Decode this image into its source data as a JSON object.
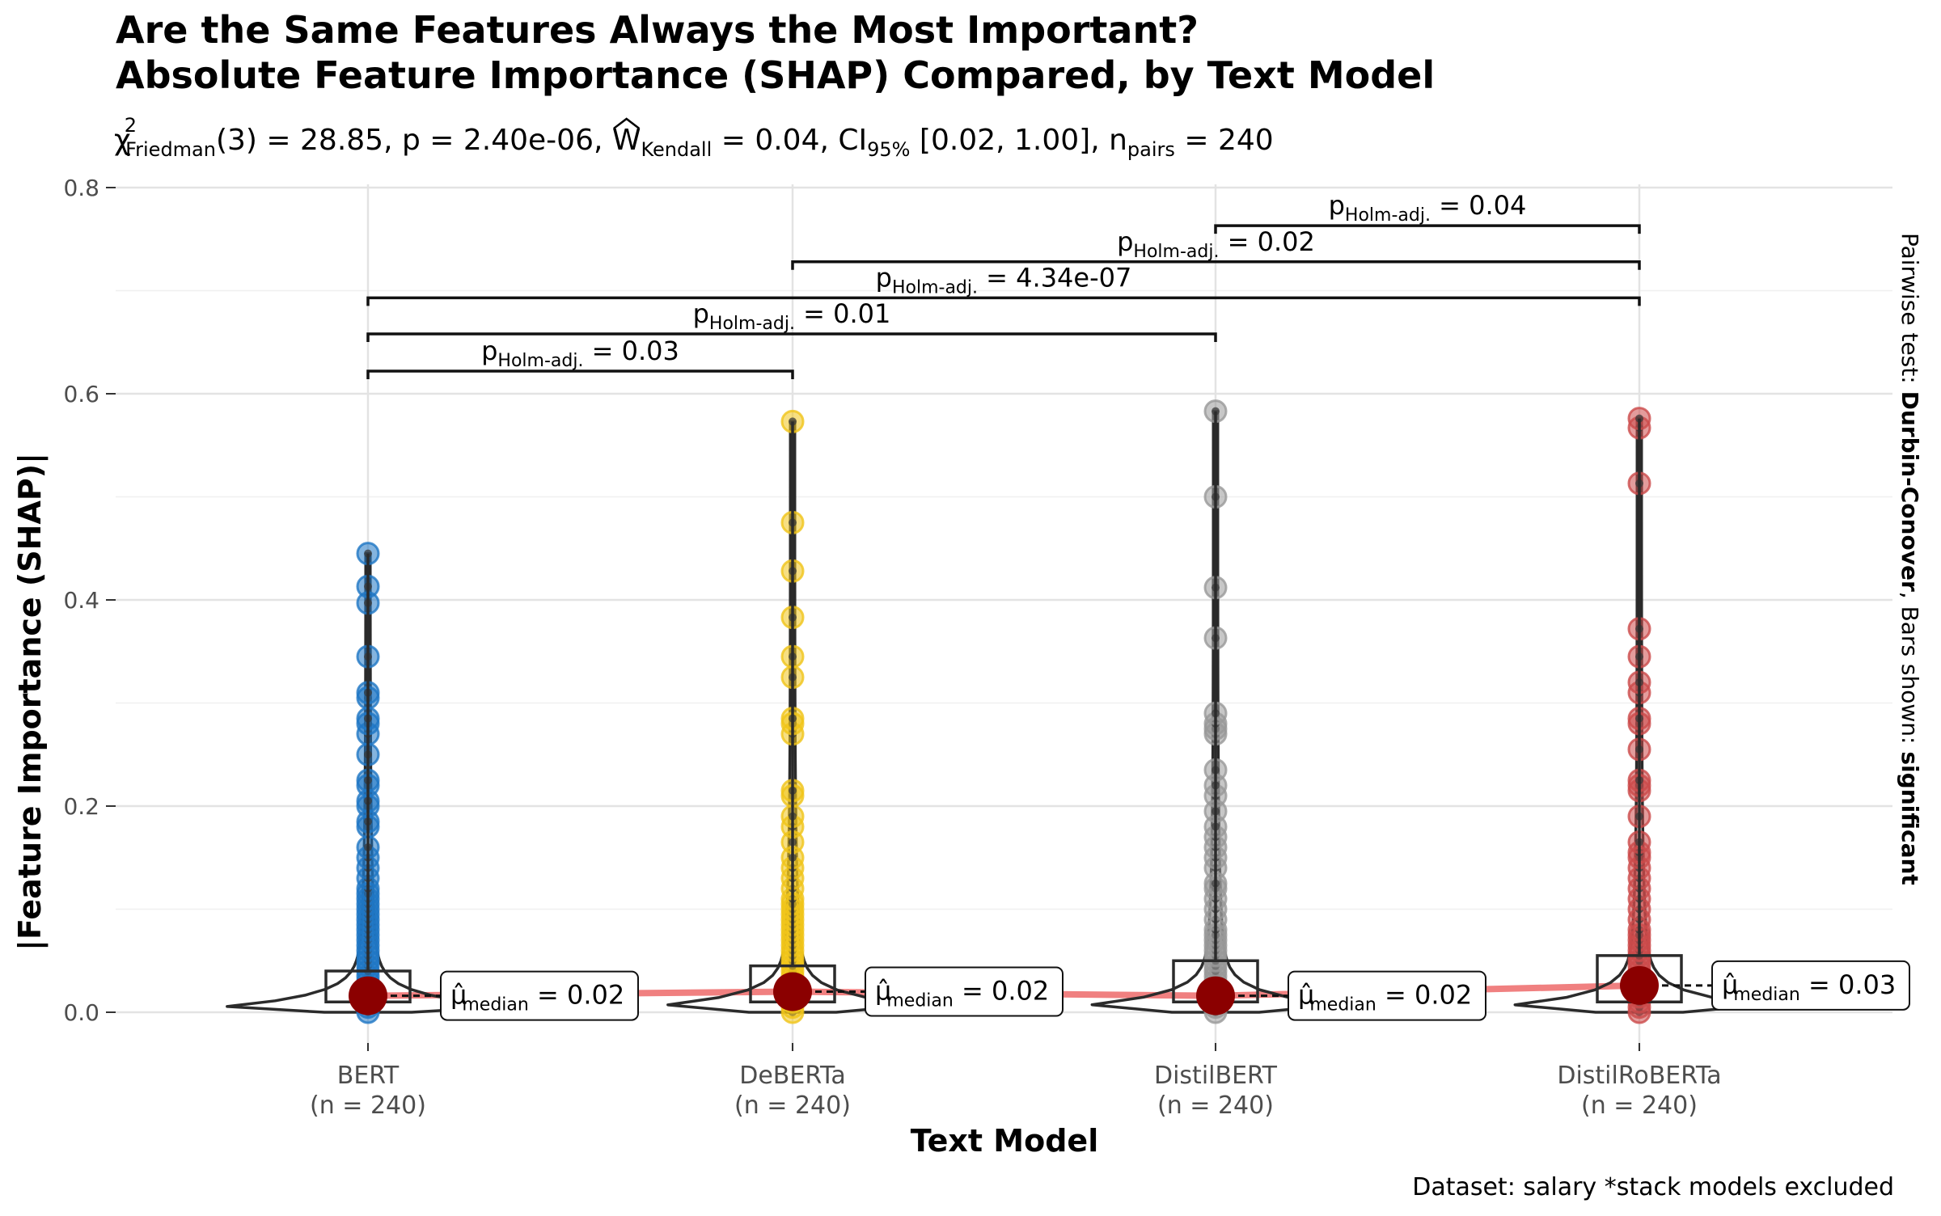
{
  "chart_data": {
    "type": "violin-box-scatter",
    "title_line1": "Are the Same Features Always the Most Important?",
    "title_line2": "Absolute Feature Importance (SHAP) Compared, by Text Model",
    "subtitle": {
      "chi_label": "χ",
      "chi_sup": "2",
      "chi_sub": "Friedman",
      "df_and_stat": "(3) = 28.85, p = 2.40e-06, ",
      "w_label": "W",
      "w_sub": "Kendall",
      "w_val": " = 0.04, CI",
      "ci_sub": "95%",
      "ci_val": " [0.02, 1.00], n",
      "n_sub": "pairs",
      "n_val": " = 240"
    },
    "xlabel": "Text Model",
    "ylabel": "|Feature Importance (SHAP)|",
    "ylim": [
      0.0,
      0.8
    ],
    "yticks": [
      "0.0",
      "0.2",
      "0.4",
      "0.6",
      "0.8"
    ],
    "ytick_values": [
      0.0,
      0.2,
      0.4,
      0.6,
      0.8
    ],
    "right_note_prefix": "Pairwise test: ",
    "right_note_bold1": "Durbin-Conover",
    "right_note_mid": ", Bars shown: ",
    "right_note_bold2": "significant",
    "caption": "Dataset:  salary *stack models excluded",
    "groups": [
      {
        "name": "BERT",
        "n_label": "(n = 240)",
        "color": "#1f77c4",
        "median": 0.016,
        "q1": 0.01,
        "q3": 0.04,
        "max": 0.445,
        "median_prefix": "μ̂",
        "median_sub": "median",
        "median_text": " = 0.02",
        "points": [
          0.0,
          0.005,
          0.01,
          0.015,
          0.02,
          0.025,
          0.03,
          0.035,
          0.04,
          0.045,
          0.05,
          0.055,
          0.06,
          0.065,
          0.07,
          0.075,
          0.08,
          0.085,
          0.09,
          0.095,
          0.1,
          0.105,
          0.11,
          0.115,
          0.12,
          0.13,
          0.14,
          0.15,
          0.16,
          0.18,
          0.185,
          0.2,
          0.205,
          0.22,
          0.225,
          0.25,
          0.27,
          0.28,
          0.285,
          0.305,
          0.31,
          0.345,
          0.397,
          0.413,
          0.445
        ]
      },
      {
        "name": "DeBERTa",
        "n_label": "(n = 240)",
        "color": "#f0c419",
        "median": 0.02,
        "q1": 0.01,
        "q3": 0.045,
        "max": 0.573,
        "median_prefix": "μ̂",
        "median_sub": "median",
        "median_text": " = 0.02",
        "points": [
          0.0,
          0.005,
          0.01,
          0.015,
          0.02,
          0.025,
          0.03,
          0.035,
          0.04,
          0.045,
          0.05,
          0.055,
          0.06,
          0.065,
          0.07,
          0.075,
          0.08,
          0.085,
          0.09,
          0.095,
          0.1,
          0.105,
          0.11,
          0.12,
          0.13,
          0.14,
          0.15,
          0.165,
          0.18,
          0.19,
          0.21,
          0.215,
          0.27,
          0.28,
          0.285,
          0.325,
          0.345,
          0.383,
          0.428,
          0.475,
          0.573
        ]
      },
      {
        "name": "DistilBERT",
        "n_label": "(n = 240)",
        "color": "#999999",
        "median": 0.016,
        "q1": 0.01,
        "q3": 0.05,
        "max": 0.583,
        "median_prefix": "μ̂",
        "median_sub": "median",
        "median_text": " = 0.02",
        "points": [
          0.0,
          0.005,
          0.01,
          0.015,
          0.02,
          0.025,
          0.03,
          0.035,
          0.04,
          0.045,
          0.05,
          0.055,
          0.06,
          0.065,
          0.07,
          0.075,
          0.08,
          0.09,
          0.1,
          0.11,
          0.12,
          0.125,
          0.14,
          0.15,
          0.16,
          0.17,
          0.18,
          0.195,
          0.21,
          0.22,
          0.235,
          0.27,
          0.275,
          0.28,
          0.29,
          0.363,
          0.412,
          0.5,
          0.583
        ]
      },
      {
        "name": "DistilRoBERTa",
        "n_label": "(n = 240)",
        "color": "#cc4b4b",
        "median": 0.026,
        "q1": 0.01,
        "q3": 0.055,
        "max": 0.576,
        "median_prefix": "μ̂",
        "median_sub": "median",
        "median_text": " = 0.03",
        "points": [
          0.0,
          0.005,
          0.01,
          0.015,
          0.02,
          0.025,
          0.03,
          0.035,
          0.04,
          0.045,
          0.05,
          0.055,
          0.06,
          0.065,
          0.07,
          0.075,
          0.08,
          0.09,
          0.1,
          0.11,
          0.12,
          0.13,
          0.14,
          0.15,
          0.155,
          0.165,
          0.19,
          0.215,
          0.22,
          0.225,
          0.255,
          0.28,
          0.285,
          0.31,
          0.32,
          0.345,
          0.372,
          0.513,
          0.567,
          0.576
        ]
      }
    ],
    "pairwise": [
      {
        "from": 0,
        "to": 1,
        "y": 0.622,
        "label_p": "p",
        "label_sub": "Holm-adj.",
        "label_val": " = 0.03"
      },
      {
        "from": 0,
        "to": 2,
        "y": 0.658,
        "label_p": "p",
        "label_sub": "Holm-adj.",
        "label_val": " = 0.01"
      },
      {
        "from": 0,
        "to": 3,
        "y": 0.693,
        "label_p": "p",
        "label_sub": "Holm-adj.",
        "label_val": " = 4.34e-07"
      },
      {
        "from": 1,
        "to": 3,
        "y": 0.728,
        "label_p": "p",
        "label_sub": "Holm-adj.",
        "label_val": " = 0.02"
      },
      {
        "from": 2,
        "to": 3,
        "y": 0.763,
        "label_p": "p",
        "label_sub": "Holm-adj.",
        "label_val": " = 0.04"
      }
    ],
    "median_line_color": "#f08080",
    "median_point_color": "#8b0000",
    "grid": true
  }
}
